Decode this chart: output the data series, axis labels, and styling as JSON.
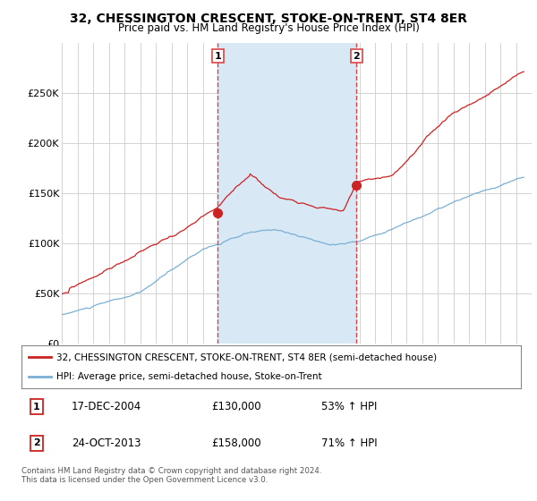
{
  "title": "32, CHESSINGTON CRESCENT, STOKE-ON-TRENT, ST4 8ER",
  "subtitle": "Price paid vs. HM Land Registry's House Price Index (HPI)",
  "background_color": "#ffffff",
  "plot_bg_color": "#ffffff",
  "grid_color": "#cccccc",
  "sale1_date": 2004.96,
  "sale1_price": 130000,
  "sale2_date": 2013.81,
  "sale2_price": 158000,
  "legend_line1": "32, CHESSINGTON CRESCENT, STOKE-ON-TRENT, ST4 8ER (semi-detached house)",
  "legend_line2": "HPI: Average price, semi-detached house, Stoke-on-Trent",
  "annotation1_date": "17-DEC-2004",
  "annotation1_price": "£130,000",
  "annotation1_hpi": "53% ↑ HPI",
  "annotation2_date": "24-OCT-2013",
  "annotation2_price": "£158,000",
  "annotation2_hpi": "71% ↑ HPI",
  "footer": "Contains HM Land Registry data © Crown copyright and database right 2024.\nThis data is licensed under the Open Government Licence v3.0.",
  "hpi_color": "#7ab0d4",
  "price_color": "#cc2222",
  "vline_color": "#dd4444",
  "vspan_color": "#d8e8f5",
  "vline1_x": 2004.96,
  "vline2_x": 2013.81,
  "xmin": 1995,
  "xmax": 2025,
  "ymin": 0,
  "ymax": 300000
}
